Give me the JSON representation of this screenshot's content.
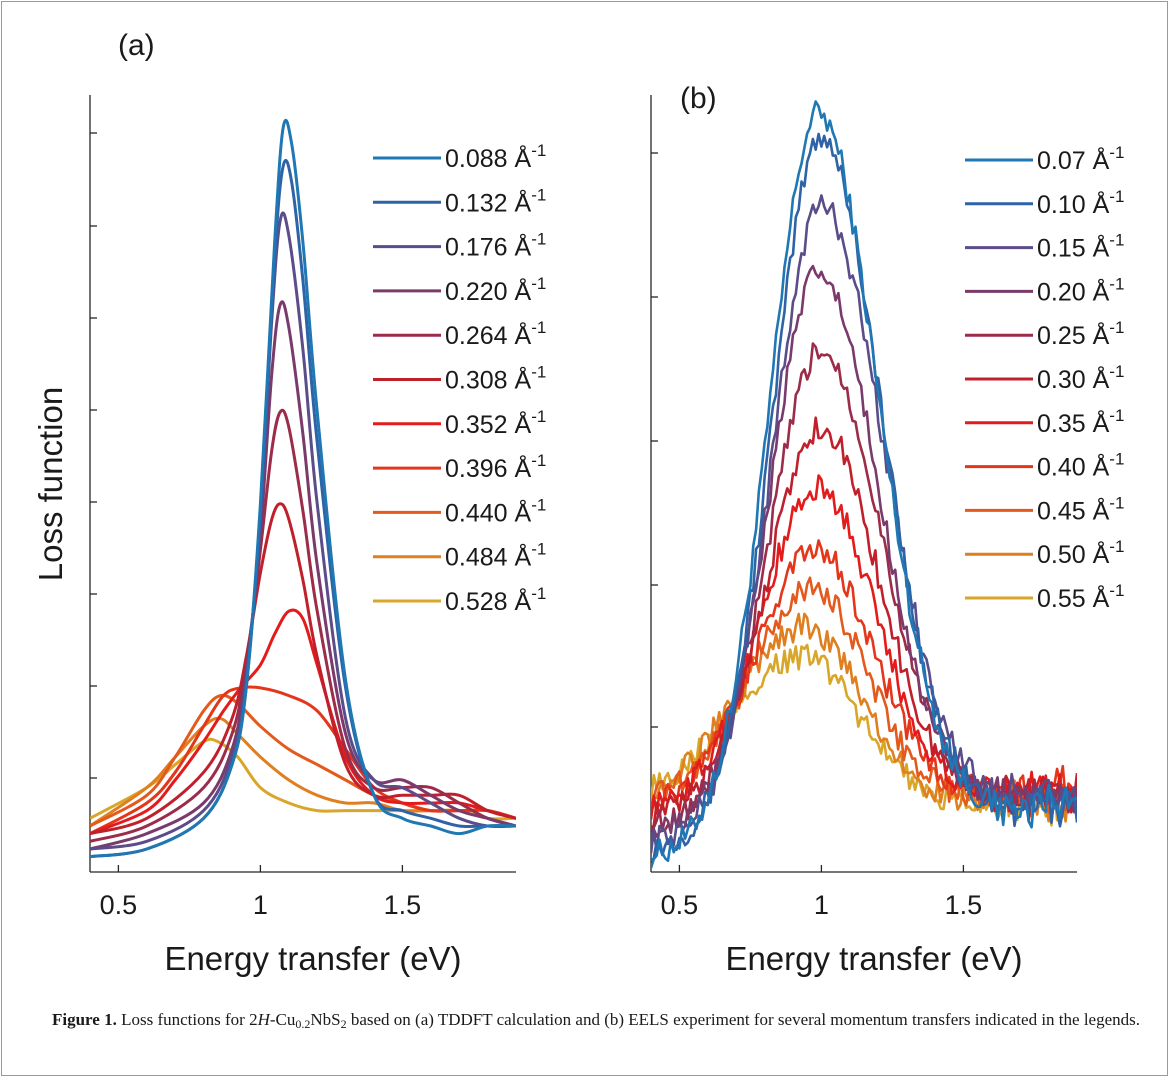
{
  "figure": {
    "caption": {
      "label": "Figure 1.",
      "text_a": "Loss functions for 2",
      "italic": "H",
      "text_b": "-Cu",
      "sub1": "0.2",
      "text_c": "NbS",
      "sub2": "2",
      "text_d": " based on (a) TDDFT calculation and (b) EELS experiment for several momentum transfers indicated in the legends."
    }
  },
  "colors": [
    "#1f77b4",
    "#2f63a6",
    "#5b4c8a",
    "#7a3a6b",
    "#9b2c4a",
    "#c0202c",
    "#e31b1b",
    "#e4361a",
    "#e35a1c",
    "#df7f20",
    "#d8a72a"
  ],
  "chart_data": [
    {
      "type": "line",
      "panel_label": "(a)",
      "xlabel": "Energy transfer (eV)",
      "ylabel": "Loss function",
      "xlim": [
        0.4,
        1.9
      ],
      "xticks": [
        0.5,
        1,
        1.5
      ],
      "xtick_labels": [
        "0.5",
        "1",
        "1.5"
      ],
      "y_tick_labels_shown": false,
      "grid": false,
      "legend_position": "top-right",
      "series": [
        {
          "name": "0.088 Å⁻¹",
          "q": "0.088",
          "peak_x": 1.09,
          "peak_y": 0.98,
          "x": [
            0.4,
            0.6,
            0.8,
            0.9,
            0.95,
            1.0,
            1.05,
            1.08,
            1.11,
            1.15,
            1.2,
            1.3,
            1.4,
            1.5,
            1.6,
            1.7,
            1.8,
            1.9
          ],
          "y": [
            0.02,
            0.03,
            0.07,
            0.14,
            0.24,
            0.48,
            0.82,
            0.97,
            0.95,
            0.82,
            0.6,
            0.25,
            0.1,
            0.07,
            0.06,
            0.05,
            0.06,
            0.06
          ]
        },
        {
          "name": "0.132 Å⁻¹",
          "q": "0.132",
          "peak_x": 1.08,
          "peak_y": 0.93,
          "x": [
            0.4,
            0.6,
            0.8,
            0.9,
            0.95,
            1.0,
            1.05,
            1.08,
            1.11,
            1.15,
            1.2,
            1.3,
            1.4,
            1.5,
            1.6,
            1.7,
            1.8,
            1.9
          ],
          "y": [
            0.02,
            0.03,
            0.07,
            0.14,
            0.24,
            0.47,
            0.8,
            0.92,
            0.9,
            0.77,
            0.56,
            0.24,
            0.1,
            0.08,
            0.07,
            0.06,
            0.06,
            0.06
          ]
        },
        {
          "name": "0.176 Å⁻¹",
          "q": "0.176",
          "peak_x": 1.07,
          "peak_y": 0.86,
          "x": [
            0.4,
            0.6,
            0.8,
            0.9,
            0.95,
            1.0,
            1.04,
            1.07,
            1.1,
            1.15,
            1.2,
            1.3,
            1.4,
            1.5,
            1.6,
            1.7,
            1.8,
            1.9
          ],
          "y": [
            0.03,
            0.04,
            0.08,
            0.15,
            0.25,
            0.46,
            0.72,
            0.85,
            0.83,
            0.68,
            0.48,
            0.2,
            0.12,
            0.11,
            0.09,
            0.07,
            0.06,
            0.06
          ]
        },
        {
          "name": "0.220 Å⁻¹",
          "q": "0.220",
          "peak_x": 1.07,
          "peak_y": 0.75,
          "x": [
            0.4,
            0.6,
            0.8,
            0.9,
            0.95,
            1.0,
            1.04,
            1.07,
            1.1,
            1.15,
            1.2,
            1.3,
            1.4,
            1.5,
            1.6,
            1.7,
            1.8,
            1.9
          ],
          "y": [
            0.03,
            0.05,
            0.09,
            0.16,
            0.26,
            0.44,
            0.65,
            0.74,
            0.71,
            0.57,
            0.4,
            0.18,
            0.12,
            0.12,
            0.1,
            0.08,
            0.07,
            0.06
          ]
        },
        {
          "name": "0.264 Å⁻¹",
          "q": "0.264",
          "peak_x": 1.07,
          "peak_y": 0.6,
          "x": [
            0.4,
            0.6,
            0.8,
            0.9,
            0.95,
            1.0,
            1.04,
            1.07,
            1.1,
            1.15,
            1.2,
            1.3,
            1.4,
            1.5,
            1.6,
            1.7,
            1.8,
            1.9
          ],
          "y": [
            0.04,
            0.06,
            0.11,
            0.18,
            0.27,
            0.42,
            0.55,
            0.6,
            0.58,
            0.47,
            0.34,
            0.16,
            0.11,
            0.11,
            0.11,
            0.09,
            0.07,
            0.06
          ]
        },
        {
          "name": "0.308 Å⁻¹",
          "q": "0.308",
          "peak_x": 1.07,
          "peak_y": 0.48,
          "x": [
            0.4,
            0.6,
            0.8,
            0.9,
            0.95,
            1.0,
            1.04,
            1.07,
            1.1,
            1.15,
            1.2,
            1.3,
            1.4,
            1.5,
            1.6,
            1.7,
            1.8,
            1.9
          ],
          "y": [
            0.05,
            0.07,
            0.13,
            0.2,
            0.28,
            0.39,
            0.46,
            0.48,
            0.46,
            0.38,
            0.28,
            0.14,
            0.1,
            0.1,
            0.1,
            0.1,
            0.08,
            0.07
          ]
        },
        {
          "name": "0.352 Å⁻¹",
          "q": "0.352",
          "peak_x": 1.11,
          "peak_y": 0.34,
          "x": [
            0.4,
            0.6,
            0.7,
            0.8,
            0.87,
            0.93,
            1.0,
            1.05,
            1.1,
            1.15,
            1.2,
            1.3,
            1.4,
            1.5,
            1.6,
            1.7,
            1.8,
            1.9
          ],
          "y": [
            0.05,
            0.08,
            0.12,
            0.17,
            0.21,
            0.24,
            0.27,
            0.31,
            0.34,
            0.33,
            0.27,
            0.15,
            0.1,
            0.09,
            0.09,
            0.09,
            0.08,
            0.07
          ]
        },
        {
          "name": "0.396 Å⁻¹",
          "q": "0.396",
          "peak_x": 0.92,
          "peak_y": 0.24,
          "x": [
            0.4,
            0.6,
            0.7,
            0.8,
            0.87,
            0.93,
            1.0,
            1.1,
            1.2,
            1.3,
            1.4,
            1.5,
            1.6,
            1.7,
            1.8,
            1.9
          ],
          "y": [
            0.05,
            0.09,
            0.13,
            0.19,
            0.23,
            0.24,
            0.24,
            0.23,
            0.21,
            0.16,
            0.11,
            0.09,
            0.08,
            0.08,
            0.08,
            0.07
          ]
        },
        {
          "name": "0.440 Å⁻¹",
          "q": "0.440",
          "peak_x": 0.86,
          "peak_y": 0.23,
          "x": [
            0.4,
            0.6,
            0.7,
            0.8,
            0.86,
            0.92,
            1.0,
            1.1,
            1.2,
            1.3,
            1.4,
            1.5,
            1.6,
            1.7,
            1.8,
            1.9
          ],
          "y": [
            0.06,
            0.1,
            0.15,
            0.21,
            0.23,
            0.22,
            0.19,
            0.16,
            0.14,
            0.12,
            0.1,
            0.09,
            0.08,
            0.08,
            0.08,
            0.07
          ]
        },
        {
          "name": "0.484 Å⁻¹",
          "q": "0.484",
          "peak_x": 0.86,
          "peak_y": 0.2,
          "x": [
            0.4,
            0.6,
            0.7,
            0.8,
            0.86,
            0.92,
            1.0,
            1.1,
            1.2,
            1.3,
            1.4,
            1.5,
            1.6,
            1.7,
            1.8,
            1.9
          ],
          "y": [
            0.06,
            0.11,
            0.15,
            0.19,
            0.2,
            0.18,
            0.15,
            0.12,
            0.1,
            0.09,
            0.09,
            0.08,
            0.08,
            0.08,
            0.08,
            0.07
          ]
        },
        {
          "name": "0.528 Å⁻¹",
          "q": "0.528",
          "peak_x": 0.85,
          "peak_y": 0.17,
          "x": [
            0.4,
            0.6,
            0.7,
            0.8,
            0.85,
            0.92,
            1.0,
            1.1,
            1.2,
            1.3,
            1.4,
            1.5,
            1.6,
            1.7,
            1.8,
            1.9
          ],
          "y": [
            0.07,
            0.11,
            0.14,
            0.17,
            0.17,
            0.15,
            0.11,
            0.09,
            0.08,
            0.08,
            0.08,
            0.08,
            0.08,
            0.08,
            0.07,
            0.07
          ]
        }
      ]
    },
    {
      "type": "line",
      "panel_label": "(b)",
      "xlabel": "Energy transfer (eV)",
      "ylabel": "",
      "xlim": [
        0.4,
        1.9
      ],
      "xticks": [
        0.5,
        1,
        1.5
      ],
      "xtick_labels": [
        "0.5",
        "1",
        "1.5"
      ],
      "y_tick_labels_shown": false,
      "grid": false,
      "legend_position": "top-right",
      "noisy": true,
      "series": [
        {
          "name": "0.07 Å⁻¹",
          "q": "0.07",
          "peak_x": 0.99,
          "peak_y": 0.99,
          "base_left": 0.02,
          "base_right": 0.09,
          "sigma_l": 0.17,
          "sigma_r": 0.21
        },
        {
          "name": "0.10 Å⁻¹",
          "q": "0.10",
          "peak_x": 1.0,
          "peak_y": 0.96,
          "base_left": 0.03,
          "base_right": 0.09,
          "sigma_l": 0.17,
          "sigma_r": 0.21
        },
        {
          "name": "0.15 Å⁻¹",
          "q": "0.15",
          "peak_x": 1.0,
          "peak_y": 0.87,
          "base_left": 0.04,
          "base_right": 0.1,
          "sigma_l": 0.17,
          "sigma_r": 0.22
        },
        {
          "name": "0.20 Å⁻¹",
          "q": "0.20",
          "peak_x": 0.99,
          "peak_y": 0.78,
          "base_left": 0.05,
          "base_right": 0.1,
          "sigma_l": 0.17,
          "sigma_r": 0.21
        },
        {
          "name": "0.25 Å⁻¹",
          "q": "0.25",
          "peak_x": 1.0,
          "peak_y": 0.68,
          "base_left": 0.06,
          "base_right": 0.1,
          "sigma_l": 0.18,
          "sigma_r": 0.21
        },
        {
          "name": "0.30 Å⁻¹",
          "q": "0.30",
          "peak_x": 1.0,
          "peak_y": 0.58,
          "base_left": 0.07,
          "base_right": 0.11,
          "sigma_l": 0.19,
          "sigma_r": 0.2
        },
        {
          "name": "0.35 Å⁻¹",
          "q": "0.35",
          "peak_x": 0.99,
          "peak_y": 0.5,
          "base_left": 0.08,
          "base_right": 0.11,
          "sigma_l": 0.2,
          "sigma_r": 0.2
        },
        {
          "name": "0.40 Å⁻¹",
          "q": "0.40",
          "peak_x": 0.98,
          "peak_y": 0.42,
          "base_left": 0.08,
          "base_right": 0.11,
          "sigma_l": 0.21,
          "sigma_r": 0.2
        },
        {
          "name": "0.45 Å⁻¹",
          "q": "0.45",
          "peak_x": 0.97,
          "peak_y": 0.37,
          "base_left": 0.09,
          "base_right": 0.1,
          "sigma_l": 0.22,
          "sigma_r": 0.19
        },
        {
          "name": "0.50 Å⁻¹",
          "q": "0.50",
          "peak_x": 0.94,
          "peak_y": 0.32,
          "base_left": 0.09,
          "base_right": 0.09,
          "sigma_l": 0.24,
          "sigma_r": 0.2
        },
        {
          "name": "0.55 Å⁻¹",
          "q": "0.55",
          "peak_x": 0.93,
          "peak_y": 0.28,
          "base_left": 0.09,
          "base_right": 0.09,
          "sigma_l": 0.25,
          "sigma_r": 0.2
        }
      ]
    }
  ]
}
